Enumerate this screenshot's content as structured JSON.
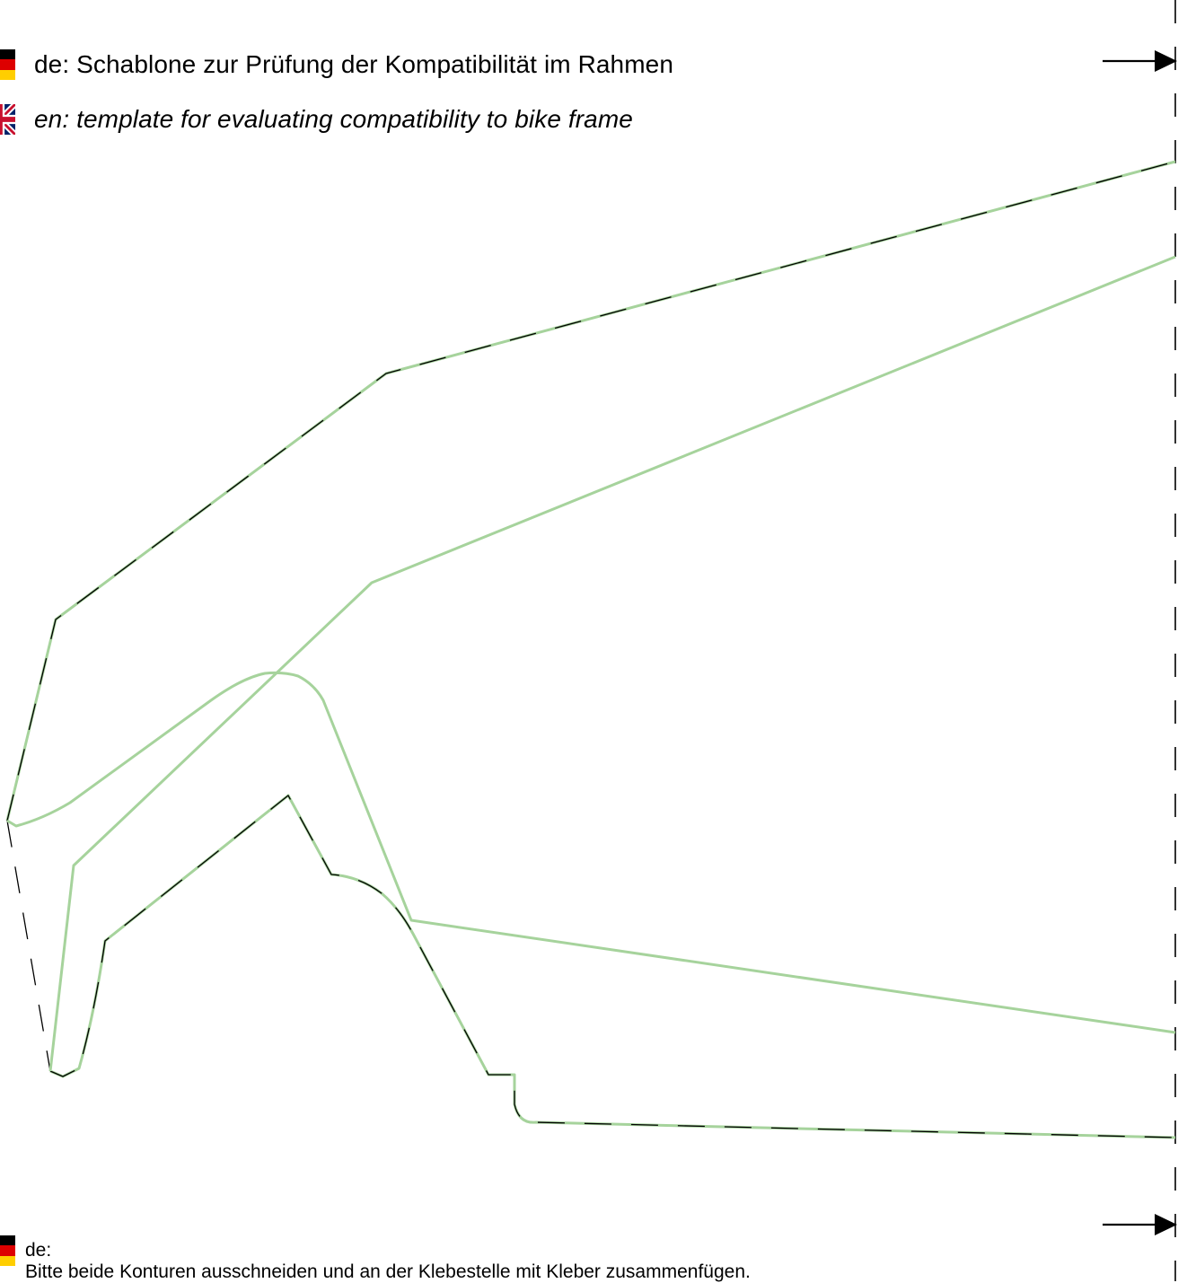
{
  "header": {
    "title_de": "de: Schablone zur Prüfung der Kompatibilität im Rahmen",
    "title_en": "en: template for evaluating compatibility to bike frame"
  },
  "footer": {
    "lang_label_de": "de:",
    "instruction_de": "Bitte beide Konturen ausschneiden und an der Klebestelle mit Kleber zusammenfügen."
  },
  "icons": {
    "flag_de": "german-flag-icon",
    "flag_uk": "uk-flag-icon",
    "arrow": "right-arrow-icon"
  },
  "colors": {
    "contour_green": "#a6d39c",
    "cut_line": "#000000",
    "flag_black": "#000000",
    "flag_red": "#dd0000",
    "flag_gold": "#ffce00",
    "uk_blue": "#012169",
    "uk_red": "#c8102e"
  }
}
